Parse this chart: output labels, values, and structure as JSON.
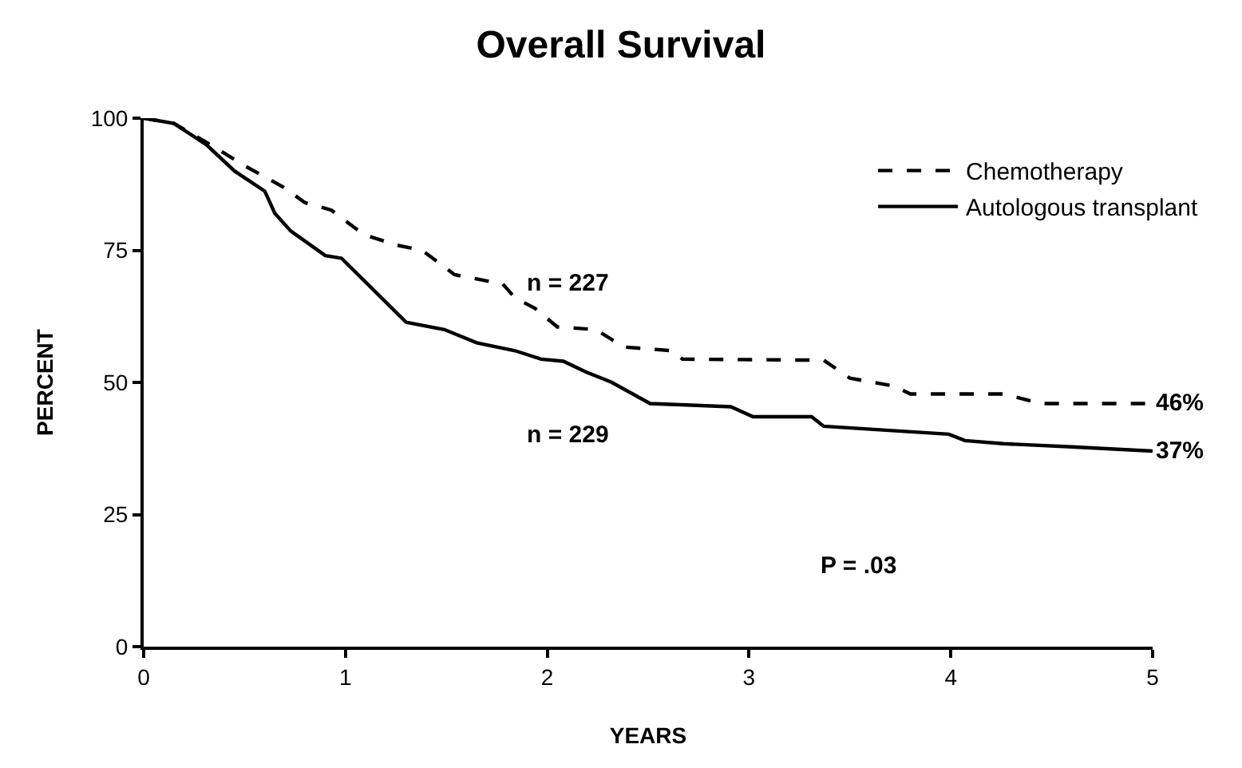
{
  "chart_data": {
    "type": "line",
    "title": "Overall Survival",
    "xlabel": "YEARS",
    "ylabel": "PERCENT",
    "xlim": [
      0,
      5
    ],
    "ylim": [
      0,
      100
    ],
    "xticks": [
      0,
      1,
      2,
      3,
      4,
      5
    ],
    "yticks": [
      0,
      25,
      50,
      75,
      100
    ],
    "legend": "top right",
    "marker": "none",
    "series": [
      {
        "name": "Chemotherapy",
        "color": "#000000",
        "line_style": "dashed",
        "x": [
          0,
          0.15,
          0.33,
          0.5,
          0.69,
          0.8,
          0.93,
          1.09,
          1.25,
          1.38,
          1.54,
          1.78,
          1.84,
          1.94,
          2.05,
          2.24,
          2.38,
          2.62,
          2.67,
          3.37,
          3.5,
          3.72,
          3.8,
          4.26,
          4.45,
          5
        ],
        "values": [
          100,
          99,
          95,
          91,
          87,
          84,
          82.6,
          78,
          76,
          75,
          70.4,
          68.6,
          66,
          64,
          60.5,
          60,
          56.7,
          56,
          54.4,
          54.2,
          50.8,
          49.3,
          47.8,
          47.8,
          46,
          46
        ]
      },
      {
        "name": "Autologous transplant",
        "color": "#000000",
        "line_style": "solid",
        "x": [
          0,
          0.15,
          0.31,
          0.45,
          0.6,
          0.65,
          0.73,
          0.9,
          0.98,
          1.11,
          1.3,
          1.49,
          1.65,
          1.84,
          1.97,
          2.08,
          2.19,
          2.32,
          2.51,
          2.91,
          3.02,
          3.31,
          3.37,
          3.99,
          4.07,
          4.26,
          4.6,
          5
        ],
        "values": [
          100,
          99,
          95,
          90,
          86.2,
          82,
          78.6,
          74,
          73.5,
          68.6,
          61.4,
          60,
          57.5,
          56,
          54.4,
          54,
          52,
          50,
          46,
          45.4,
          43.5,
          43.5,
          41.7,
          40.2,
          39,
          38.4,
          37.8,
          37
        ]
      }
    ],
    "annotations": [
      "n = 227",
      "n = 229",
      {
        "text": "46%",
        "x": 5,
        "y": 46
      },
      {
        "text": "37%",
        "x": 5,
        "y": 37
      },
      "P = .03"
    ]
  }
}
